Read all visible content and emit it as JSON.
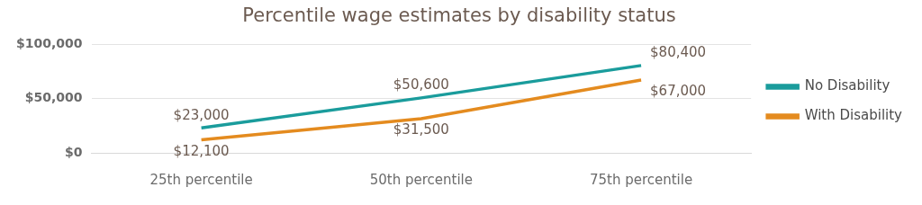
{
  "chart_data": {
    "type": "line",
    "title": "Percentile wage estimates by disability status",
    "categories": [
      "25th percentile",
      "50th percentile",
      "75th percentile"
    ],
    "series": [
      {
        "name": "No Disability",
        "color": "#1a9c9c",
        "values": [
          23000,
          50600,
          80400
        ],
        "value_labels": [
          "$23,000",
          "$50,600",
          "$80,400"
        ]
      },
      {
        "name": "With Disability",
        "color": "#e48b1f",
        "values": [
          12100,
          31500,
          67000
        ],
        "value_labels": [
          "$12,100",
          "$31,500",
          "$67,000"
        ]
      }
    ],
    "ylim": [
      0,
      100000
    ],
    "yticks": [
      {
        "value": 0,
        "label": "$0"
      },
      {
        "value": 50000,
        "label": "$50,000"
      },
      {
        "value": 100000,
        "label": "$100,000"
      }
    ],
    "grid": true,
    "legend": "right",
    "data_labels": true
  }
}
